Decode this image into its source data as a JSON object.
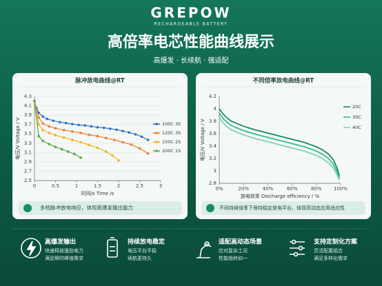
{
  "header": {
    "brand": "GREPOW",
    "brand_sub": "RECHARGEABLE BATTERY",
    "title": "高倍率电芯性能曲线展示",
    "tagline": "高爆发 · 长续航 · 强适配"
  },
  "chart_data": [
    {
      "type": "line",
      "title": "脉冲放电曲线@RT",
      "x_label": "时间/s  Time /s",
      "y_label": "电压/V  Voltage / V",
      "xlim": [
        0,
        3
      ],
      "xticks": [
        0,
        0.5,
        1,
        1.5,
        2,
        2.5,
        3
      ],
      "ylim": [
        2.5,
        4.3
      ],
      "yticks": [
        2.5,
        2.7,
        2.9,
        3.1,
        3.3,
        3.5,
        3.7,
        3.9,
        4.1,
        4.3
      ],
      "grid": true,
      "markers": true,
      "series": [
        {
          "name": "100C 3S",
          "color": "#2f6fc4",
          "x": [
            0,
            0.05,
            0.1,
            0.2,
            0.3,
            0.45,
            0.6,
            0.75,
            0.9,
            1.05,
            1.2,
            1.35,
            1.5,
            1.65,
            1.8,
            1.95,
            2.1,
            2.25,
            2.4,
            2.55,
            2.7
          ],
          "values": [
            4.2,
            4.05,
            3.95,
            3.87,
            3.82,
            3.78,
            3.75,
            3.73,
            3.71,
            3.69,
            3.68,
            3.66,
            3.64,
            3.63,
            3.61,
            3.59,
            3.56,
            3.53,
            3.49,
            3.44,
            3.37
          ]
        },
        {
          "name": "120C 3S",
          "color": "#ee7d31",
          "x": [
            0,
            0.1,
            0.2,
            0.35,
            0.5,
            0.7,
            0.9,
            1.1,
            1.3,
            1.5,
            1.7,
            1.9,
            2.1,
            2.3,
            2.5,
            2.7
          ],
          "values": [
            4.2,
            3.85,
            3.72,
            3.66,
            3.62,
            3.58,
            3.55,
            3.52,
            3.48,
            3.45,
            3.41,
            3.37,
            3.32,
            3.27,
            3.19,
            3.08
          ]
        },
        {
          "name": "150C 2S",
          "color": "#f2b31c",
          "x": [
            0,
            0.1,
            0.2,
            0.35,
            0.5,
            0.7,
            0.9,
            1.1,
            1.3,
            1.5,
            1.7,
            1.85,
            2.0
          ],
          "values": [
            4.2,
            3.7,
            3.58,
            3.52,
            3.47,
            3.42,
            3.37,
            3.32,
            3.26,
            3.2,
            3.12,
            3.04,
            2.93
          ]
        },
        {
          "name": "200C 1S",
          "color": "#5aa844",
          "x": [
            0,
            0.1,
            0.2,
            0.35,
            0.5,
            0.65,
            0.8,
            0.95,
            1.1
          ],
          "values": [
            4.2,
            3.45,
            3.35,
            3.28,
            3.22,
            3.17,
            3.12,
            3.07,
            2.99
          ]
        }
      ]
    },
    {
      "type": "line",
      "title": "不同倍率放电曲线@RT",
      "x_label": "放电效率  Discharge efficiency / %",
      "y_label": "电压/V  Voltage / V",
      "xlim": [
        0,
        100
      ],
      "xticks": [
        {
          "value": 0,
          "label": "0%"
        },
        {
          "value": 20,
          "label": "20%"
        },
        {
          "value": 40,
          "label": "40%"
        },
        {
          "value": 60,
          "label": "60%"
        },
        {
          "value": 80,
          "label": "80%"
        },
        {
          "value": 100,
          "label": "100%"
        }
      ],
      "ylim": [
        2.8,
        4.2
      ],
      "yticks": [
        2.8,
        3.0,
        3.2,
        3.4,
        3.6,
        3.8,
        4.0,
        4.2
      ],
      "grid": true,
      "markers": false,
      "series": [
        {
          "name": "20C",
          "color": "#138a68",
          "x": [
            0,
            3,
            6,
            10,
            20,
            30,
            40,
            50,
            60,
            70,
            80,
            85,
            90,
            94,
            97,
            99
          ],
          "values": [
            4.0,
            3.92,
            3.86,
            3.8,
            3.72,
            3.66,
            3.61,
            3.56,
            3.51,
            3.46,
            3.39,
            3.34,
            3.27,
            3.18,
            3.05,
            2.92
          ]
        },
        {
          "name": "30C",
          "color": "#3db394",
          "x": [
            0,
            3,
            6,
            10,
            20,
            30,
            40,
            50,
            60,
            70,
            80,
            85,
            90,
            94,
            97,
            99
          ],
          "values": [
            3.93,
            3.85,
            3.79,
            3.73,
            3.65,
            3.59,
            3.54,
            3.49,
            3.44,
            3.39,
            3.32,
            3.27,
            3.2,
            3.11,
            2.99,
            2.88
          ]
        },
        {
          "name": "40C",
          "color": "#7dd1b8",
          "x": [
            0,
            3,
            6,
            10,
            20,
            30,
            40,
            50,
            60,
            70,
            80,
            85,
            90,
            94,
            97,
            99
          ],
          "values": [
            3.86,
            3.78,
            3.72,
            3.66,
            3.58,
            3.52,
            3.47,
            3.42,
            3.37,
            3.32,
            3.25,
            3.2,
            3.13,
            3.05,
            2.94,
            2.85
          ]
        }
      ]
    }
  ],
  "captions": [
    "多档脉冲放电响应，体现高爆发输出能力",
    "不同持续倍率下保持稳定放电平台，体现高动态应用适应性"
  ],
  "features": [
    {
      "title": "高爆发输出",
      "lines": [
        "快速释放强劲电力",
        "满足瞬时峰值需求"
      ]
    },
    {
      "title": "持续放电稳定",
      "lines": [
        "电压平台平稳",
        "续航更持久"
      ]
    },
    {
      "title": "适配高动态场景",
      "lines": [
        "应对复杂工况",
        "性能始终如一"
      ]
    },
    {
      "title": "支持定制化方案",
      "lines": [
        "灵活配置组合",
        "满足多样化需求"
      ]
    }
  ]
}
